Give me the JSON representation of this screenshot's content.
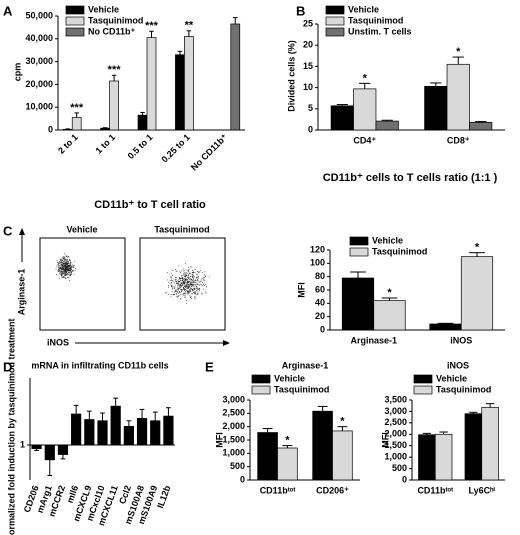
{
  "chart_data": [
    {
      "panel": "A",
      "type": "bar",
      "categories": [
        "2 to 1",
        "1 to 1",
        "0.5 to 1",
        "0.25 to 1",
        "No CD11b⁺"
      ],
      "series": [
        {
          "name": "Vehicle",
          "color": "#000000",
          "values": [
            300,
            800,
            6500,
            33000,
            null
          ],
          "errors": [
            200,
            200,
            1200,
            1500,
            null
          ]
        },
        {
          "name": "Tasquinimod",
          "color": "#d9d9d9",
          "values": [
            5500,
            21500,
            40500,
            41000,
            null
          ],
          "errors": [
            2000,
            2500,
            2800,
            2500,
            null
          ]
        },
        {
          "name": "No CD11b⁺",
          "color": "#707070",
          "values": [
            null,
            null,
            null,
            null,
            46500
          ],
          "errors": [
            null,
            null,
            null,
            null,
            2800
          ]
        }
      ],
      "ylim": [
        0,
        50000
      ],
      "yticks": [
        0,
        {
          "value": 10000,
          "label": "10,000"
        },
        {
          "value": 20000,
          "label": "20,000"
        },
        {
          "value": 30000,
          "label": "30,000"
        },
        {
          "value": 40000,
          "label": "40,000"
        },
        {
          "value": 50000,
          "label": "50,000"
        }
      ],
      "y_label": "cpm",
      "x_label": "CD11b⁺ to T cell ratio",
      "legend": "upper left",
      "annotations": [
        {
          "text": "***",
          "series": 1,
          "index": 0
        },
        {
          "text": "***",
          "series": 1,
          "index": 1
        },
        {
          "text": "***",
          "series": 1,
          "index": 2
        },
        {
          "text": "**",
          "series": 1,
          "index": 3
        }
      ]
    },
    {
      "panel": "B",
      "type": "bar",
      "categories": [
        "CD4⁺",
        "CD8⁺"
      ],
      "series": [
        {
          "name": "Vehicle",
          "color": "#000000",
          "values": [
            5.7,
            10.3
          ],
          "errors": [
            0.3,
            0.8
          ]
        },
        {
          "name": "Tasquinimod",
          "color": "#d9d9d9",
          "values": [
            9.7,
            15.5
          ],
          "errors": [
            1.3,
            1.7
          ]
        },
        {
          "name": "Unstim. T cells",
          "color": "#707070",
          "values": [
            2.1,
            1.8
          ],
          "errors": [
            0.2,
            0.2
          ]
        }
      ],
      "ylim": [
        0,
        25
      ],
      "yticks": [
        0,
        5,
        10,
        15,
        20,
        25
      ],
      "y_label": "Divided cells (%)",
      "x_label": "CD11b⁺ cells to T cells ratio (1:1 )",
      "legend": "upper left",
      "annotations": [
        {
          "text": "*",
          "series": 1,
          "index": 0
        },
        {
          "text": "*",
          "series": 1,
          "index": 1
        }
      ]
    },
    {
      "type": "bar",
      "categories": [
        "Arginase-1",
        "iNOS"
      ],
      "series": [
        {
          "name": "Vehicle",
          "color": "#000000",
          "values": [
            78,
            9
          ],
          "errors": [
            9,
            1
          ]
        },
        {
          "name": "Tasquinimod",
          "color": "#d9d9d9",
          "values": [
            44,
            110
          ],
          "errors": [
            4,
            6
          ]
        }
      ],
      "ylim": [
        0,
        120
      ],
      "yticks": [
        0,
        20,
        40,
        60,
        80,
        100,
        120
      ],
      "y_label": "MFI",
      "legend": "upper left",
      "annotations": [
        {
          "text": "*",
          "series": 1,
          "index": 0
        },
        {
          "text": "*",
          "series": 1,
          "index": 1
        }
      ]
    },
    {
      "panel": "D",
      "type": "bar",
      "title": "mRNA in infiltrating CD11b cells",
      "categories": [
        "CD206",
        "mArg1",
        "mCCR2",
        "mIl6",
        "mCXCL9",
        "mCxcl10",
        "mCXCL11",
        "Ccl2",
        "mS100A8",
        "mS100A9",
        "IL12b"
      ],
      "series": [
        {
          "name": "mRNA",
          "color": "#000000",
          "values": [
            0.88,
            0.6,
            0.72,
            2.9,
            2.4,
            2.3,
            3.8,
            1.9,
            2.5,
            2.3,
            2.7
          ],
          "errors": [
            0.05,
            0.25,
            0.1,
            1.0,
            0.8,
            0.7,
            1.2,
            0.4,
            0.9,
            0.8,
            0.9
          ]
        }
      ],
      "ylim": [
        0.3,
        10
      ],
      "yticks": [
        1
      ],
      "log_scale": true,
      "y_label": "Normalized fold induction by tasquinimod treatment"
    },
    {
      "panel": "E",
      "type": "bar",
      "title": "Arginase-1",
      "categories": [
        "CD11bᵗᵒᵗ",
        "CD206⁺"
      ],
      "series": [
        {
          "name": "Vehicle",
          "color": "#000000",
          "values": [
            1780,
            2580
          ],
          "errors": [
            150,
            180
          ]
        },
        {
          "name": "Tasquinimod",
          "color": "#d9d9d9",
          "values": [
            1200,
            1840
          ],
          "errors": [
            90,
            160
          ]
        }
      ],
      "ylim": [
        0,
        3000
      ],
      "yticks": [
        0,
        500,
        {
          "value": 1000,
          "label": "1,000"
        },
        {
          "value": 1500,
          "label": "1,500"
        },
        {
          "value": 2000,
          "label": "2,000"
        },
        {
          "value": 2500,
          "label": "2,500"
        },
        {
          "value": 3000,
          "label": "3,000"
        }
      ],
      "y_label": "MFI",
      "legend": "upper left",
      "annotations": [
        {
          "text": "*",
          "series": 1,
          "index": 0
        },
        {
          "text": "*",
          "series": 1,
          "index": 1
        }
      ]
    },
    {
      "type": "bar",
      "title": "iNOS",
      "categories": [
        "CD11bᵗᵒᵗ",
        "Ly6Cʰⁱ"
      ],
      "series": [
        {
          "name": "Vehicle",
          "color": "#000000",
          "values": [
            1980,
            2900
          ],
          "errors": [
            60,
            60
          ]
        },
        {
          "name": "Tasquinimod",
          "color": "#d9d9d9",
          "values": [
            2000,
            3180
          ],
          "errors": [
            100,
            160
          ]
        }
      ],
      "ylim": [
        0,
        3500
      ],
      "yticks": [
        0,
        500,
        {
          "value": 1000,
          "label": "1,000"
        },
        {
          "value": 1500,
          "label": "1,500"
        },
        {
          "value": 2000,
          "label": "2,000"
        },
        {
          "value": 2500,
          "label": "2,500"
        },
        {
          "value": 3000,
          "label": "3,000"
        },
        {
          "value": 3500,
          "label": "3,500"
        }
      ],
      "y_label": "MFI",
      "legend": "upper left"
    }
  ],
  "flow": {
    "panel": "C",
    "titles": [
      "Vehicle",
      "Tasquinimod"
    ],
    "y_label": "Arginase-1",
    "x_label": "iNOS"
  }
}
